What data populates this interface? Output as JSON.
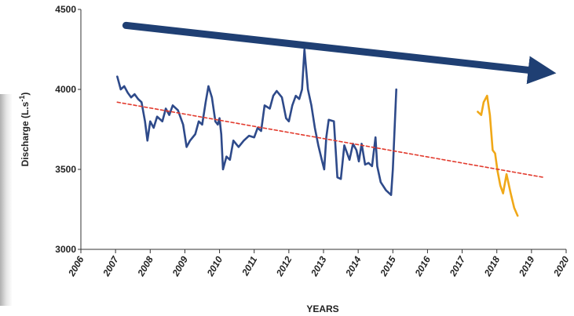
{
  "chart_data": {
    "type": "line",
    "title": "",
    "xlabel": "YEARS",
    "ylabel": "Discharge (L.s",
    "ylabel_superscript": "-1",
    "ylabel_suffix": ")",
    "xlim": [
      2006,
      2020
    ],
    "ylim": [
      3000,
      4500
    ],
    "x_ticks": [
      2006,
      2007,
      2008,
      2009,
      2010,
      2011,
      2012,
      2013,
      2014,
      2015,
      2016,
      2017,
      2018,
      2019,
      2020
    ],
    "x_tick_labels": [
      "2006",
      "2007",
      "2008",
      "2009",
      "2010",
      "2011",
      "2012",
      "2013",
      "2014",
      "2015",
      "2016",
      "2017",
      "2018",
      "2019",
      "2020"
    ],
    "y_ticks": [
      3000,
      3500,
      4000,
      4500
    ],
    "y_tick_labels": [
      "3000",
      "3500",
      "4000",
      "4500"
    ],
    "grid": false,
    "series": [
      {
        "color": "#2e4a8a",
        "style": "solid",
        "points": [
          [
            2007.05,
            4080
          ],
          [
            2007.15,
            4000
          ],
          [
            2007.25,
            4020
          ],
          [
            2007.35,
            3980
          ],
          [
            2007.45,
            3950
          ],
          [
            2007.55,
            3970
          ],
          [
            2007.65,
            3940
          ],
          [
            2007.75,
            3920
          ],
          [
            2007.85,
            3800
          ],
          [
            2007.92,
            3680
          ],
          [
            2008.0,
            3800
          ],
          [
            2008.1,
            3760
          ],
          [
            2008.2,
            3830
          ],
          [
            2008.35,
            3800
          ],
          [
            2008.45,
            3880
          ],
          [
            2008.55,
            3840
          ],
          [
            2008.65,
            3900
          ],
          [
            2008.8,
            3870
          ],
          [
            2008.95,
            3780
          ],
          [
            2009.05,
            3640
          ],
          [
            2009.15,
            3680
          ],
          [
            2009.3,
            3720
          ],
          [
            2009.4,
            3800
          ],
          [
            2009.5,
            3780
          ],
          [
            2009.6,
            3920
          ],
          [
            2009.68,
            4020
          ],
          [
            2009.78,
            3950
          ],
          [
            2009.88,
            3800
          ],
          [
            2009.95,
            3780
          ],
          [
            2010.0,
            3820
          ],
          [
            2010.05,
            3720
          ],
          [
            2010.1,
            3500
          ],
          [
            2010.2,
            3580
          ],
          [
            2010.3,
            3560
          ],
          [
            2010.4,
            3680
          ],
          [
            2010.55,
            3640
          ],
          [
            2010.7,
            3680
          ],
          [
            2010.85,
            3710
          ],
          [
            2011.0,
            3700
          ],
          [
            2011.1,
            3760
          ],
          [
            2011.2,
            3740
          ],
          [
            2011.3,
            3900
          ],
          [
            2011.45,
            3880
          ],
          [
            2011.55,
            3960
          ],
          [
            2011.65,
            3990
          ],
          [
            2011.8,
            3950
          ],
          [
            2011.92,
            3820
          ],
          [
            2012.0,
            3800
          ],
          [
            2012.1,
            3900
          ],
          [
            2012.2,
            3960
          ],
          [
            2012.3,
            3940
          ],
          [
            2012.38,
            4000
          ],
          [
            2012.45,
            4250
          ],
          [
            2012.55,
            4000
          ],
          [
            2012.65,
            3900
          ],
          [
            2012.75,
            3760
          ],
          [
            2012.85,
            3650
          ],
          [
            2012.95,
            3560
          ],
          [
            2013.02,
            3500
          ],
          [
            2013.08,
            3700
          ],
          [
            2013.15,
            3810
          ],
          [
            2013.3,
            3800
          ],
          [
            2013.4,
            3450
          ],
          [
            2013.5,
            3440
          ],
          [
            2013.6,
            3650
          ],
          [
            2013.75,
            3560
          ],
          [
            2013.85,
            3660
          ],
          [
            2013.95,
            3620
          ],
          [
            2014.02,
            3550
          ],
          [
            2014.1,
            3660
          ],
          [
            2014.2,
            3530
          ],
          [
            2014.3,
            3540
          ],
          [
            2014.4,
            3520
          ],
          [
            2014.5,
            3700
          ],
          [
            2014.55,
            3520
          ],
          [
            2014.65,
            3420
          ],
          [
            2014.8,
            3370
          ],
          [
            2014.95,
            3340
          ],
          [
            2015.0,
            3500
          ],
          [
            2015.1,
            4000
          ]
        ]
      },
      {
        "color": "#f0a818",
        "style": "solid",
        "points": [
          [
            2017.45,
            3860
          ],
          [
            2017.55,
            3840
          ],
          [
            2017.62,
            3920
          ],
          [
            2017.72,
            3960
          ],
          [
            2017.8,
            3840
          ],
          [
            2017.88,
            3620
          ],
          [
            2017.95,
            3600
          ],
          [
            2018.02,
            3490
          ],
          [
            2018.1,
            3400
          ],
          [
            2018.18,
            3350
          ],
          [
            2018.28,
            3470
          ],
          [
            2018.4,
            3350
          ],
          [
            2018.5,
            3260
          ],
          [
            2018.6,
            3210
          ]
        ]
      },
      {
        "color": "#e23b2e",
        "style": "dashed",
        "points": [
          [
            2007.05,
            3920
          ],
          [
            2019.35,
            3450
          ]
        ]
      }
    ],
    "annotations": [
      {
        "type": "arrow",
        "color": "#1f3f73",
        "from": [
          2007.3,
          4400
        ],
        "to": [
          2019.35,
          4110
        ]
      }
    ]
  }
}
